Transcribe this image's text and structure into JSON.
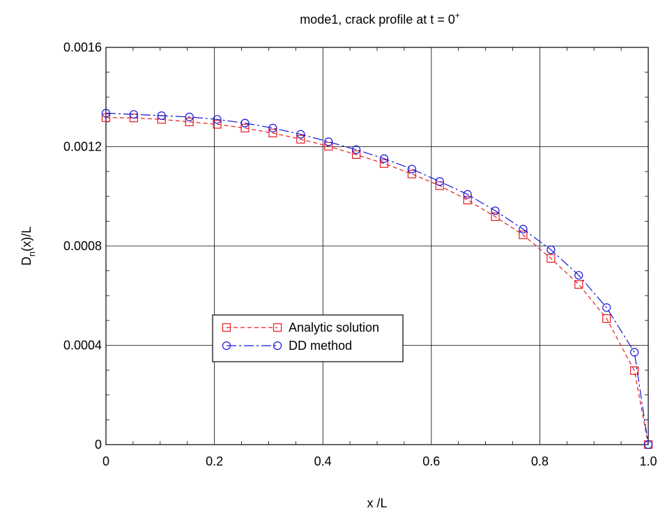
{
  "chart_data": {
    "type": "line",
    "title": "mode1, crack profile at t = 0",
    "title_superscript": "+",
    "xlabel": "x /L",
    "ylabel": "D",
    "ylabel_subscript": "n",
    "ylabel_rest": "(x)/L",
    "xlim": [
      0,
      1.0
    ],
    "ylim": [
      0,
      0.0016
    ],
    "x_ticks": [
      0,
      0.2,
      0.4,
      0.6,
      0.8,
      1.0
    ],
    "x_tick_labels": [
      "0",
      "0.2",
      "0.4",
      "0.6",
      "0.8",
      "1.0"
    ],
    "y_ticks": [
      0,
      0.0004,
      0.0008,
      0.0012,
      0.0016
    ],
    "y_tick_labels": [
      "0",
      "0.0004",
      "0.0008",
      "0.0012",
      "0.0016"
    ],
    "grid": true,
    "legend_position": "center-left",
    "series": [
      {
        "name": "Analytic solution",
        "color": "#e8181c",
        "marker": "square",
        "line_style": "dashed",
        "x": [
          0,
          0.0513,
          0.1026,
          0.1538,
          0.2051,
          0.2564,
          0.3077,
          0.359,
          0.4103,
          0.4615,
          0.5128,
          0.5641,
          0.6154,
          0.6667,
          0.7179,
          0.7692,
          0.8205,
          0.8718,
          0.9231,
          0.9744,
          1.0
        ],
        "y": [
          0.001317,
          0.001316,
          0.00131,
          0.0013,
          0.00129,
          0.001275,
          0.001255,
          0.00123,
          0.001202,
          0.001168,
          0.001132,
          0.00109,
          0.001043,
          0.000985,
          0.000918,
          0.000845,
          0.00075,
          0.000645,
          0.000508,
          0.000298,
          0.0
        ]
      },
      {
        "name": "DD method",
        "color": "#1414d8",
        "marker": "circle",
        "line_style": "dashdot",
        "x": [
          0,
          0.0513,
          0.1026,
          0.1538,
          0.2051,
          0.2564,
          0.3077,
          0.359,
          0.4103,
          0.4615,
          0.5128,
          0.5641,
          0.6154,
          0.6667,
          0.7179,
          0.7692,
          0.8205,
          0.8718,
          0.9231,
          0.9744,
          1.0
        ],
        "y": [
          0.001335,
          0.00133,
          0.001325,
          0.00132,
          0.00131,
          0.001295,
          0.001275,
          0.00125,
          0.00122,
          0.001188,
          0.001152,
          0.00111,
          0.00106,
          0.001008,
          0.000942,
          0.000868,
          0.000785,
          0.000682,
          0.000552,
          0.000372,
          0.0
        ]
      }
    ]
  }
}
